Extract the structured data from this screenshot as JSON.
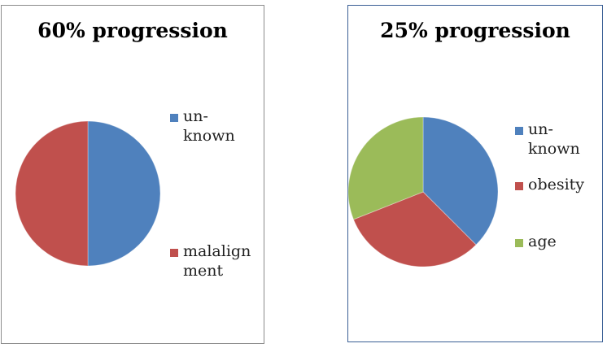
{
  "chart_data": [
    {
      "type": "pie",
      "title": "60% progression",
      "categories": [
        "un-\nknown",
        "malalign\nment"
      ],
      "values": [
        50,
        50
      ],
      "colors": [
        "#4f81bd",
        "#c0504d"
      ],
      "legend": "right"
    },
    {
      "type": "pie",
      "title": "25% progression",
      "categories": [
        "un-\nknown",
        "obesity",
        "age"
      ],
      "values": [
        37.5,
        31.5,
        31
      ],
      "colors": [
        "#4f81bd",
        "#c0504d",
        "#9bbb59"
      ],
      "legend": "right"
    }
  ]
}
